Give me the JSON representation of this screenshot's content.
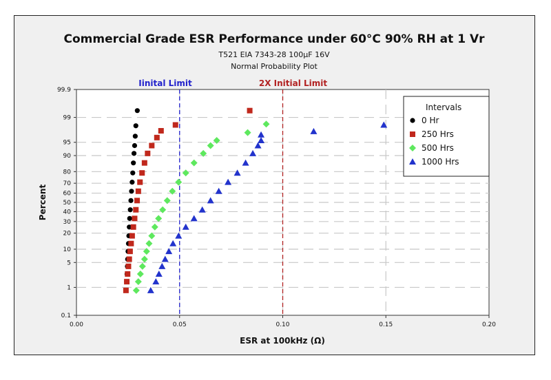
{
  "chart_data": {
    "type": "scatter",
    "title": "Commercial Grade ESR Performance under 60°C 90% RH  at 1 Vr",
    "subtitle1": "T521 EIA 7343-28 100µF 16V",
    "subtitle2": "Normal Probability Plot",
    "xlabel": "ESR at 100kHz (Ω)",
    "ylabel": "Percent",
    "xlim": [
      0,
      0.2
    ],
    "ylim": [
      0.1,
      99.9
    ],
    "y_scale": "normal-probability",
    "grid": true,
    "x_ticks": [
      {
        "value": 0.0,
        "label": "0.00"
      },
      {
        "value": 0.05,
        "label": "0.05"
      },
      {
        "value": 0.1,
        "label": "0.10"
      },
      {
        "value": 0.15,
        "label": "0.15"
      },
      {
        "value": 0.2,
        "label": "0.20"
      }
    ],
    "y_ticks": [
      {
        "value": 0.1,
        "label": "0.1"
      },
      {
        "value": 1,
        "label": "1"
      },
      {
        "value": 5,
        "label": "5"
      },
      {
        "value": 10,
        "label": "10"
      },
      {
        "value": 20,
        "label": "20"
      },
      {
        "value": 30,
        "label": "30"
      },
      {
        "value": 40,
        "label": "40"
      },
      {
        "value": 50,
        "label": "50"
      },
      {
        "value": 60,
        "label": "60"
      },
      {
        "value": 70,
        "label": "70"
      },
      {
        "value": 80,
        "label": "80"
      },
      {
        "value": 90,
        "label": "90"
      },
      {
        "value": 95,
        "label": "95"
      },
      {
        "value": 99,
        "label": "99"
      },
      {
        "value": 99.9,
        "label": "99.9"
      }
    ],
    "reference_lines": [
      {
        "x": 0.05,
        "label": "Iinital Limit",
        "color": "#2222cc"
      },
      {
        "x": 0.1,
        "label": "2X Initial Limit",
        "color": "#b22222"
      }
    ],
    "legend": {
      "title": "Intervals",
      "position": "top-right"
    },
    "series": [
      {
        "name": "0 Hr",
        "color": "#000000",
        "marker": "circle",
        "points": [
          {
            "x": 0.024,
            "y": 0.8
          },
          {
            "x": 0.0243,
            "y": 1.5
          },
          {
            "x": 0.0245,
            "y": 2.5
          },
          {
            "x": 0.0247,
            "y": 4
          },
          {
            "x": 0.0248,
            "y": 6
          },
          {
            "x": 0.025,
            "y": 9
          },
          {
            "x": 0.0252,
            "y": 13
          },
          {
            "x": 0.0254,
            "y": 18
          },
          {
            "x": 0.0256,
            "y": 25
          },
          {
            "x": 0.0258,
            "y": 33
          },
          {
            "x": 0.0261,
            "y": 42
          },
          {
            "x": 0.0264,
            "y": 52
          },
          {
            "x": 0.0267,
            "y": 62
          },
          {
            "x": 0.027,
            "y": 71
          },
          {
            "x": 0.0273,
            "y": 79
          },
          {
            "x": 0.0276,
            "y": 86
          },
          {
            "x": 0.0279,
            "y": 91
          },
          {
            "x": 0.0282,
            "y": 94
          },
          {
            "x": 0.0285,
            "y": 96.5
          },
          {
            "x": 0.0288,
            "y": 98.2
          },
          {
            "x": 0.0295,
            "y": 99.4
          }
        ]
      },
      {
        "name": "250 Hrs",
        "color": "#c0281c",
        "marker": "square",
        "points": [
          {
            "x": 0.024,
            "y": 0.8
          },
          {
            "x": 0.0244,
            "y": 1.5
          },
          {
            "x": 0.0248,
            "y": 2.5
          },
          {
            "x": 0.0252,
            "y": 4
          },
          {
            "x": 0.0256,
            "y": 6
          },
          {
            "x": 0.026,
            "y": 9
          },
          {
            "x": 0.0265,
            "y": 13
          },
          {
            "x": 0.027,
            "y": 18
          },
          {
            "x": 0.0276,
            "y": 25
          },
          {
            "x": 0.0282,
            "y": 33
          },
          {
            "x": 0.0288,
            "y": 42
          },
          {
            "x": 0.0294,
            "y": 52
          },
          {
            "x": 0.03,
            "y": 62
          },
          {
            "x": 0.0308,
            "y": 71
          },
          {
            "x": 0.0318,
            "y": 79
          },
          {
            "x": 0.033,
            "y": 86
          },
          {
            "x": 0.0345,
            "y": 91
          },
          {
            "x": 0.0365,
            "y": 94
          },
          {
            "x": 0.039,
            "y": 96.2
          },
          {
            "x": 0.041,
            "y": 97.5
          },
          {
            "x": 0.048,
            "y": 98.3
          },
          {
            "x": 0.084,
            "y": 99.4
          }
        ]
      },
      {
        "name": "500 Hrs",
        "color": "#5ee85e",
        "marker": "diamond",
        "points": [
          {
            "x": 0.029,
            "y": 0.8
          },
          {
            "x": 0.03,
            "y": 1.5
          },
          {
            "x": 0.031,
            "y": 2.5
          },
          {
            "x": 0.032,
            "y": 4
          },
          {
            "x": 0.033,
            "y": 6
          },
          {
            "x": 0.034,
            "y": 9
          },
          {
            "x": 0.0352,
            "y": 13
          },
          {
            "x": 0.0365,
            "y": 18
          },
          {
            "x": 0.038,
            "y": 25
          },
          {
            "x": 0.0398,
            "y": 33
          },
          {
            "x": 0.0418,
            "y": 42
          },
          {
            "x": 0.044,
            "y": 52
          },
          {
            "x": 0.0465,
            "y": 62
          },
          {
            "x": 0.0495,
            "y": 71
          },
          {
            "x": 0.053,
            "y": 79
          },
          {
            "x": 0.057,
            "y": 86
          },
          {
            "x": 0.0615,
            "y": 91
          },
          {
            "x": 0.065,
            "y": 94
          },
          {
            "x": 0.068,
            "y": 95.5
          },
          {
            "x": 0.083,
            "y": 97.2
          },
          {
            "x": 0.092,
            "y": 98.4
          }
        ]
      },
      {
        "name": "1000 Hrs",
        "color": "#2233cc",
        "marker": "triangle",
        "points": [
          {
            "x": 0.036,
            "y": 0.8
          },
          {
            "x": 0.0385,
            "y": 1.5
          },
          {
            "x": 0.04,
            "y": 2.5
          },
          {
            "x": 0.0415,
            "y": 4
          },
          {
            "x": 0.043,
            "y": 6
          },
          {
            "x": 0.0448,
            "y": 9
          },
          {
            "x": 0.0468,
            "y": 13
          },
          {
            "x": 0.0495,
            "y": 18
          },
          {
            "x": 0.053,
            "y": 25
          },
          {
            "x": 0.057,
            "y": 33
          },
          {
            "x": 0.061,
            "y": 42
          },
          {
            "x": 0.065,
            "y": 52
          },
          {
            "x": 0.069,
            "y": 62
          },
          {
            "x": 0.0735,
            "y": 71
          },
          {
            "x": 0.078,
            "y": 79
          },
          {
            "x": 0.082,
            "y": 86
          },
          {
            "x": 0.0855,
            "y": 91
          },
          {
            "x": 0.088,
            "y": 94
          },
          {
            "x": 0.0895,
            "y": 95.5
          },
          {
            "x": 0.0895,
            "y": 96.8
          },
          {
            "x": 0.115,
            "y": 97.4
          },
          {
            "x": 0.149,
            "y": 98.3
          }
        ]
      }
    ]
  }
}
